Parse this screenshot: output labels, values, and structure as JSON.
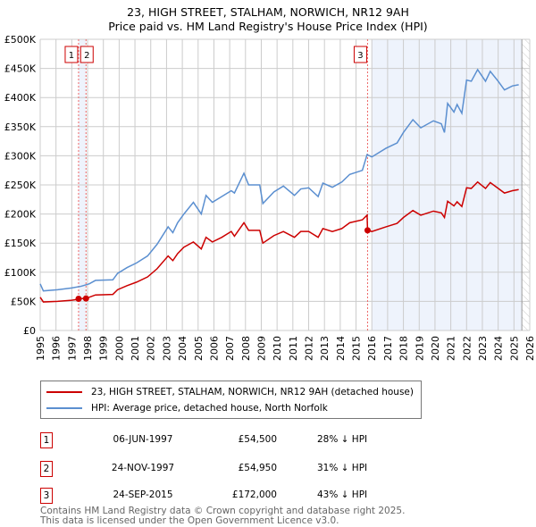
{
  "chart_data": {
    "type": "line",
    "title": "23, HIGH STREET, STALHAM, NORWICH, NR12 9AH",
    "subtitle": "Price paid vs. HM Land Registry's House Price Index (HPI)",
    "xlim": [
      1995,
      2026
    ],
    "ylim": [
      0,
      500000
    ],
    "x_ticks": [
      "1995",
      "1996",
      "1997",
      "1998",
      "1999",
      "2000",
      "2001",
      "2002",
      "2003",
      "2004",
      "2005",
      "2006",
      "2007",
      "2008",
      "2009",
      "2010",
      "2011",
      "2012",
      "2013",
      "2014",
      "2015",
      "2016",
      "2017",
      "2018",
      "2019",
      "2020",
      "2021",
      "2022",
      "2023",
      "2024",
      "2025",
      "2026"
    ],
    "y_ticks": [
      {
        "v": 0,
        "label": "£0"
      },
      {
        "v": 50000,
        "label": "£50K"
      },
      {
        "v": 100000,
        "label": "£100K"
      },
      {
        "v": 150000,
        "label": "£150K"
      },
      {
        "v": 200000,
        "label": "£200K"
      },
      {
        "v": 250000,
        "label": "£250K"
      },
      {
        "v": 300000,
        "label": "£300K"
      },
      {
        "v": 350000,
        "label": "£350K"
      },
      {
        "v": 400000,
        "label": "£400K"
      },
      {
        "v": 450000,
        "label": "£450K"
      },
      {
        "v": 500000,
        "label": "£500K"
      }
    ],
    "grid": true,
    "series": [
      {
        "name": "23, HIGH STREET, STALHAM, NORWICH, NR12 9AH (detached house)",
        "color": "#cc0000",
        "x": [
          1995,
          1995.2,
          1996.1,
          1997,
          1997.6,
          1998.1,
          1998.5,
          1999.6,
          1999.9,
          2000.5,
          2001.1,
          2001.8,
          2002.4,
          2003.1,
          2003.4,
          2003.7,
          2004.1,
          2004.7,
          2005.2,
          2005.5,
          2005.9,
          2006.5,
          2007.1,
          2007.3,
          2007.9,
          2008.2,
          2008.9,
          2009.1,
          2009.8,
          2010.4,
          2011.1,
          2011.5,
          2012,
          2012.6,
          2012.9,
          2013.5,
          2014.1,
          2014.6,
          2015.4,
          2015.7,
          2015.73,
          2016,
          2016.9,
          2017.6,
          2018,
          2018.6,
          2019.1,
          2019.9,
          2020.4,
          2020.6,
          2020.8,
          2021.2,
          2021.4,
          2021.7,
          2022,
          2022.3,
          2022.7,
          2023.2,
          2023.5,
          2024,
          2024.4,
          2024.9,
          2025.3
        ],
        "y": [
          57000,
          49000,
          50000,
          52000,
          54500,
          57000,
          61000,
          62000,
          70000,
          77000,
          83000,
          92000,
          106000,
          128000,
          120000,
          132000,
          143000,
          152000,
          140000,
          160000,
          152000,
          160000,
          170000,
          162000,
          185000,
          172000,
          172000,
          150000,
          163000,
          170000,
          160000,
          170000,
          170000,
          160000,
          175000,
          170000,
          175000,
          185000,
          190000,
          198000,
          172000,
          170000,
          178000,
          184000,
          194000,
          206000,
          198000,
          205000,
          202000,
          194000,
          222000,
          214000,
          221000,
          213000,
          245000,
          244000,
          255000,
          244000,
          254000,
          244000,
          236000,
          240000,
          242000
        ]
      },
      {
        "name": "HPI: Average price, detached house, North Norfolk",
        "color": "#5b8fd0",
        "x": [
          1995,
          1995.2,
          1996.1,
          1997,
          1997.6,
          1998.1,
          1998.5,
          1999.6,
          1999.9,
          2000.5,
          2001.1,
          2001.8,
          2002.4,
          2003.1,
          2003.4,
          2003.7,
          2004.1,
          2004.7,
          2005.2,
          2005.5,
          2005.9,
          2006.5,
          2007.1,
          2007.3,
          2007.9,
          2008.2,
          2008.9,
          2009.1,
          2009.8,
          2010.4,
          2011.1,
          2011.5,
          2012,
          2012.6,
          2012.9,
          2013.5,
          2014.1,
          2014.6,
          2015.4,
          2015.7,
          2016,
          2016.9,
          2017.6,
          2018,
          2018.6,
          2019.1,
          2019.9,
          2020.4,
          2020.6,
          2020.8,
          2021.2,
          2021.4,
          2021.7,
          2022,
          2022.3,
          2022.7,
          2023.2,
          2023.5,
          2024,
          2024.4,
          2024.9,
          2025.3
        ],
        "y": [
          80000,
          68000,
          70000,
          73000,
          76000,
          80000,
          86000,
          87000,
          98000,
          108000,
          116000,
          128000,
          148000,
          178000,
          168000,
          185000,
          200000,
          220000,
          200000,
          232000,
          220000,
          230000,
          240000,
          236000,
          270000,
          250000,
          250000,
          218000,
          238000,
          248000,
          232000,
          243000,
          245000,
          230000,
          253000,
          246000,
          255000,
          268000,
          275000,
          302000,
          298000,
          313000,
          322000,
          340000,
          362000,
          348000,
          360000,
          355000,
          340000,
          390000,
          375000,
          388000,
          373000,
          430000,
          428000,
          448000,
          428000,
          445000,
          428000,
          413000,
          420000,
          422000
        ]
      }
    ],
    "sales": [
      {
        "label": "1",
        "x": 1997.43,
        "price": 54500
      },
      {
        "label": "2",
        "x": 1997.9,
        "price": 54950
      },
      {
        "label": "3",
        "x": 2015.73,
        "price": 172000
      }
    ],
    "shaded_from": 2016.0,
    "hatched_from": 2025.5
  },
  "legend": {
    "property": "23, HIGH STREET, STALHAM, NORWICH, NR12 9AH (detached house)",
    "hpi": "HPI: Average price, detached house, North Norfolk"
  },
  "transactions": [
    {
      "num": "1",
      "date": "06-JUN-1997",
      "price": "£54,500",
      "hpi": "28% ↓ HPI"
    },
    {
      "num": "2",
      "date": "24-NOV-1997",
      "price": "£54,950",
      "hpi": "31% ↓ HPI"
    },
    {
      "num": "3",
      "date": "24-SEP-2015",
      "price": "£172,000",
      "hpi": "43% ↓ HPI"
    }
  ],
  "footer": {
    "line1": "Contains HM Land Registry data © Crown copyright and database right 2025.",
    "line2": "This data is licensed under the Open Government Licence v3.0."
  }
}
